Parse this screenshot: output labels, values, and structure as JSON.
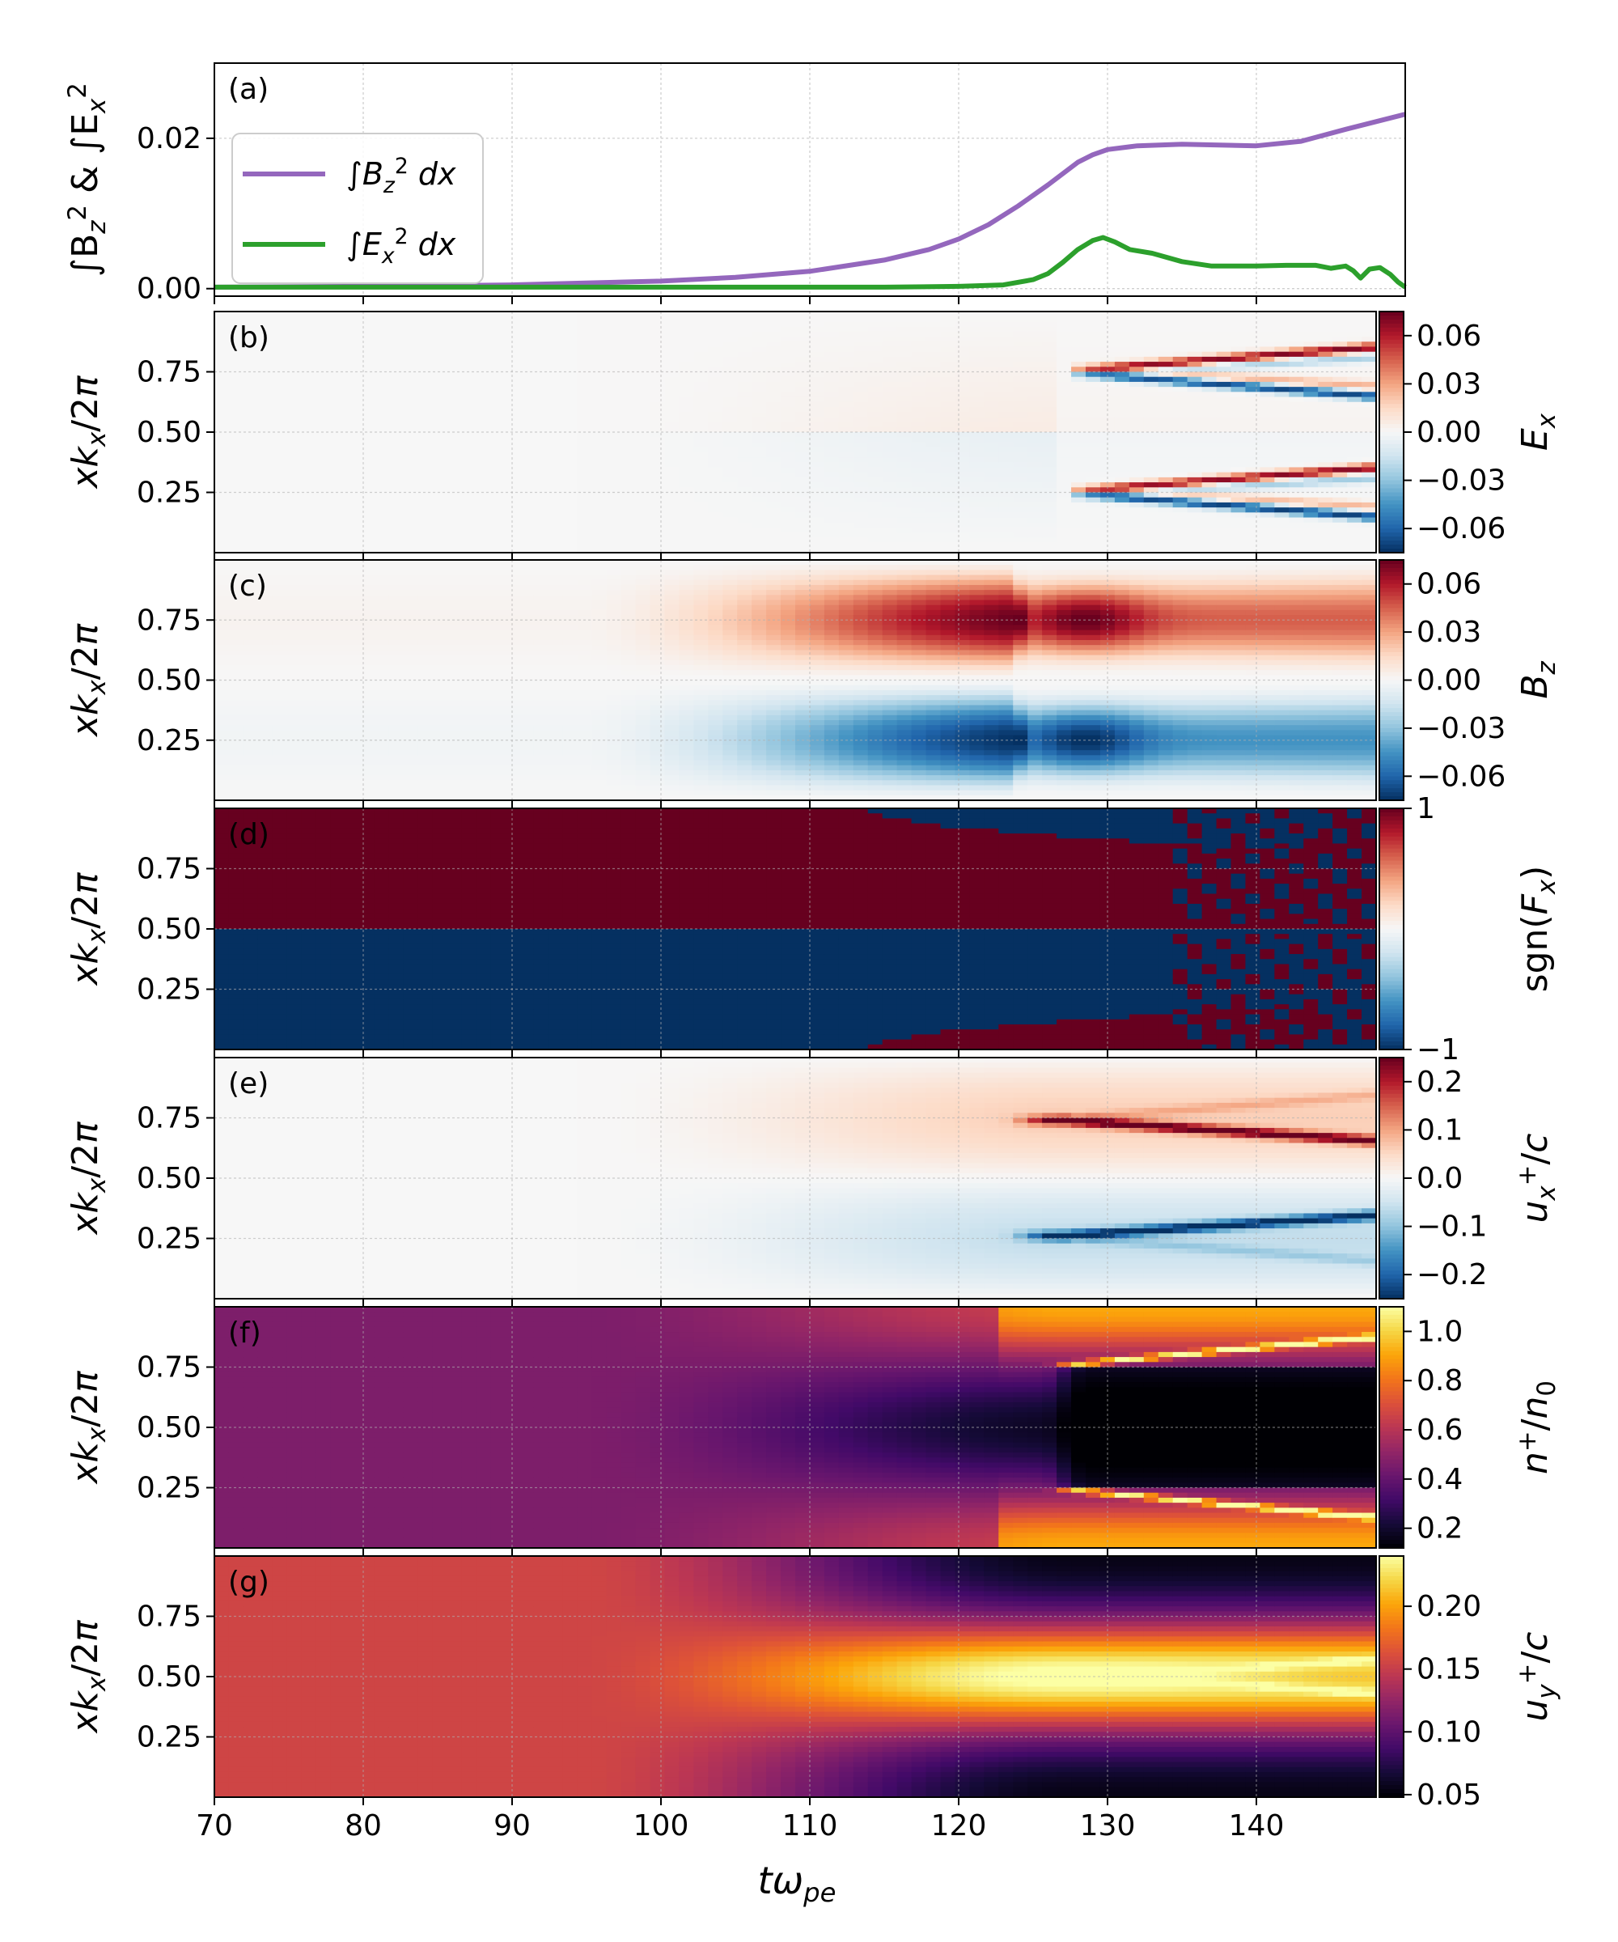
{
  "figure": {
    "xlabel": "tω",
    "xlabel_sub": "pe",
    "x_ticks": [
      "70",
      "80",
      "90",
      "100",
      "110",
      "120",
      "130",
      "140"
    ],
    "y_ticks_panels": [
      "0.25",
      "0.50",
      "0.75"
    ]
  },
  "chart_data": [
    {
      "panel": "a",
      "type": "line",
      "panel_label": "(a)",
      "ylabel": "∫B_z² & ∫E_x²",
      "x_range": [
        70,
        150
      ],
      "ylim": [
        -0.001,
        0.03
      ],
      "y_ticks": [
        "0.00",
        "0.02"
      ],
      "grid": true,
      "legend_placement": "upper-left",
      "series": [
        {
          "name": "∫B_z² dx",
          "color": "#9467bd",
          "x": [
            70,
            80,
            90,
            100,
            105,
            110,
            115,
            118,
            120,
            122,
            124,
            126,
            128,
            129,
            130,
            132,
            135,
            140,
            143,
            146,
            150
          ],
          "y": [
            0.0002,
            0.0003,
            0.0005,
            0.001,
            0.0015,
            0.0023,
            0.0038,
            0.0052,
            0.0066,
            0.0085,
            0.011,
            0.0138,
            0.0168,
            0.0178,
            0.0185,
            0.019,
            0.0192,
            0.019,
            0.0196,
            0.0212,
            0.0232
          ]
        },
        {
          "name": "∫E_x² dx",
          "color": "#2ca02c",
          "x": [
            70,
            100,
            115,
            120,
            123,
            125,
            126,
            127,
            128,
            129,
            129.7,
            130.5,
            131.5,
            133,
            135,
            137,
            140,
            142,
            144,
            145,
            146,
            146.5,
            147,
            147.6,
            148.3,
            149,
            149.5,
            150
          ],
          "y": [
            0.0002,
            0.0002,
            0.0002,
            0.0003,
            0.0005,
            0.0012,
            0.002,
            0.0035,
            0.0052,
            0.0064,
            0.0068,
            0.0062,
            0.0052,
            0.0047,
            0.0036,
            0.003,
            0.003,
            0.0031,
            0.0031,
            0.0027,
            0.003,
            0.0024,
            0.0014,
            0.0026,
            0.0028,
            0.0019,
            0.0009,
            0.0002
          ]
        }
      ]
    },
    {
      "panel": "b",
      "type": "heatmap",
      "panel_label": "(b)",
      "field": "Ex",
      "ylabel": "xk_x/2π",
      "cbar_label": "E_x",
      "colormap": "RdBu_r",
      "clim": [
        -0.075,
        0.075
      ],
      "cbar_ticks": [
        "0.06",
        "0.03",
        "0.00",
        "−0.03",
        "−0.06"
      ],
      "x_range": [
        70,
        150
      ],
      "y_range": [
        0,
        1
      ]
    },
    {
      "panel": "c",
      "type": "heatmap",
      "panel_label": "(c)",
      "field": "Bz",
      "ylabel": "xk_x/2π",
      "cbar_label": "B_z",
      "colormap": "RdBu_r",
      "clim": [
        -0.075,
        0.075
      ],
      "cbar_ticks": [
        "0.06",
        "0.03",
        "0.00",
        "−0.03",
        "−0.06"
      ],
      "x_range": [
        70,
        150
      ],
      "y_range": [
        0,
        1
      ]
    },
    {
      "panel": "d",
      "type": "heatmap",
      "panel_label": "(d)",
      "field": "sgnFx",
      "ylabel": "xk_x/2π",
      "cbar_label": "sgn(F_x)",
      "colormap": "RdBu_r",
      "clim": [
        -1,
        1
      ],
      "cbar_ticks": [
        "1",
        "−1"
      ],
      "x_range": [
        70,
        150
      ],
      "y_range": [
        0,
        1
      ]
    },
    {
      "panel": "e",
      "type": "heatmap",
      "panel_label": "(e)",
      "field": "ux",
      "ylabel": "xk_x/2π",
      "cbar_label": "u_x⁺/c",
      "colormap": "RdBu_r",
      "clim": [
        -0.25,
        0.25
      ],
      "cbar_ticks": [
        "0.2",
        "0.1",
        "0.0",
        "−0.1",
        "−0.2"
      ],
      "x_range": [
        70,
        150
      ],
      "y_range": [
        0,
        1
      ]
    },
    {
      "panel": "f",
      "type": "heatmap",
      "panel_label": "(f)",
      "field": "n",
      "ylabel": "xk_x/2π",
      "cbar_label": "n⁺/n₀",
      "colormap": "inferno",
      "clim": [
        0.12,
        1.1
      ],
      "cbar_ticks": [
        "1.0",
        "0.8",
        "0.6",
        "0.4",
        "0.2"
      ],
      "x_range": [
        70,
        150
      ],
      "y_range": [
        0,
        1
      ]
    },
    {
      "panel": "g",
      "type": "heatmap",
      "panel_label": "(g)",
      "field": "uy",
      "ylabel": "xk_x/2π",
      "cbar_label": "u_y⁺/c",
      "colormap": "inferno",
      "clim": [
        0.048,
        0.24
      ],
      "cbar_ticks": [
        "0.20",
        "0.15",
        "0.10",
        "0.05"
      ],
      "x_range": [
        70,
        150
      ],
      "y_range": [
        0,
        1
      ]
    }
  ]
}
